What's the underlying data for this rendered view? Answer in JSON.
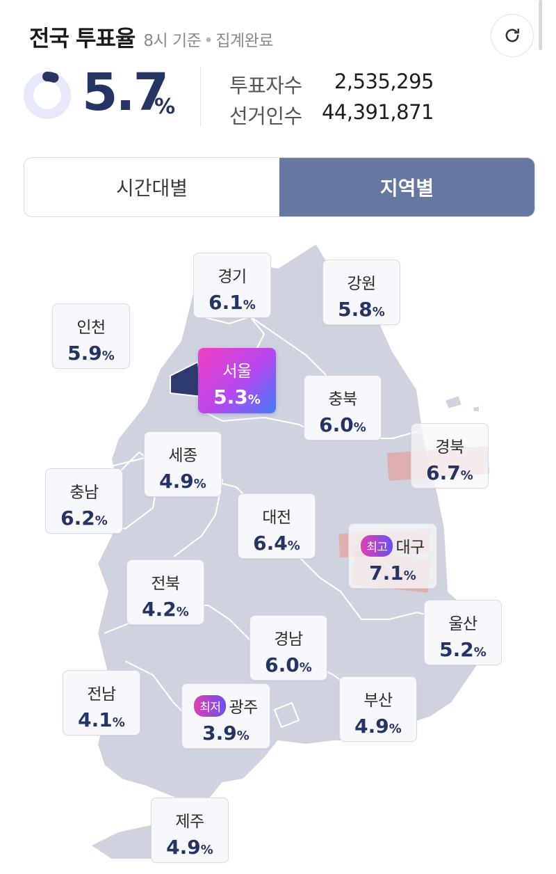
{
  "header": {
    "title": "전국 투표율",
    "subtitle_time": "8시 기준",
    "subtitle_status": "집계완료"
  },
  "summary": {
    "rate_value": "5.7",
    "rate_unit": "%",
    "turnout_progress": 0.057,
    "voters_label": "투표자수",
    "voters_value": "2,535,295",
    "electorate_label": "선거인수",
    "electorate_value": "44,391,871"
  },
  "tabs": [
    {
      "label": "시간대별",
      "active": false
    },
    {
      "label": "지역별",
      "active": true
    }
  ],
  "badges": {
    "highest": "최고",
    "lowest": "최저"
  },
  "regions": {
    "gyeonggi": {
      "name": "경기",
      "value": "6.1"
    },
    "gangwon": {
      "name": "강원",
      "value": "5.8"
    },
    "incheon": {
      "name": "인천",
      "value": "5.9"
    },
    "seoul": {
      "name": "서울",
      "value": "5.3"
    },
    "chungbuk": {
      "name": "충북",
      "value": "6.0"
    },
    "gyeongbuk": {
      "name": "경북",
      "value": "6.7"
    },
    "sejong": {
      "name": "세종",
      "value": "4.9"
    },
    "chungnam": {
      "name": "충남",
      "value": "6.2"
    },
    "daejeon": {
      "name": "대전",
      "value": "6.4"
    },
    "daegu": {
      "name": "대구",
      "value": "7.1"
    },
    "jeonbuk": {
      "name": "전북",
      "value": "4.2"
    },
    "ulsan": {
      "name": "울산",
      "value": "5.2"
    },
    "gyeongnam": {
      "name": "경남",
      "value": "6.0"
    },
    "jeonnam": {
      "name": "전남",
      "value": "4.1"
    },
    "gwangju": {
      "name": "광주",
      "value": "3.9"
    },
    "busan": {
      "name": "부산",
      "value": "4.9"
    },
    "jeju": {
      "name": "제주",
      "value": "4.9"
    }
  },
  "pct_unit": "%",
  "colors": {
    "navy": "#263463",
    "tab_active": "#6677a0",
    "map_fill": "#cfd3e0",
    "donut_track": "#e6e8fb"
  }
}
